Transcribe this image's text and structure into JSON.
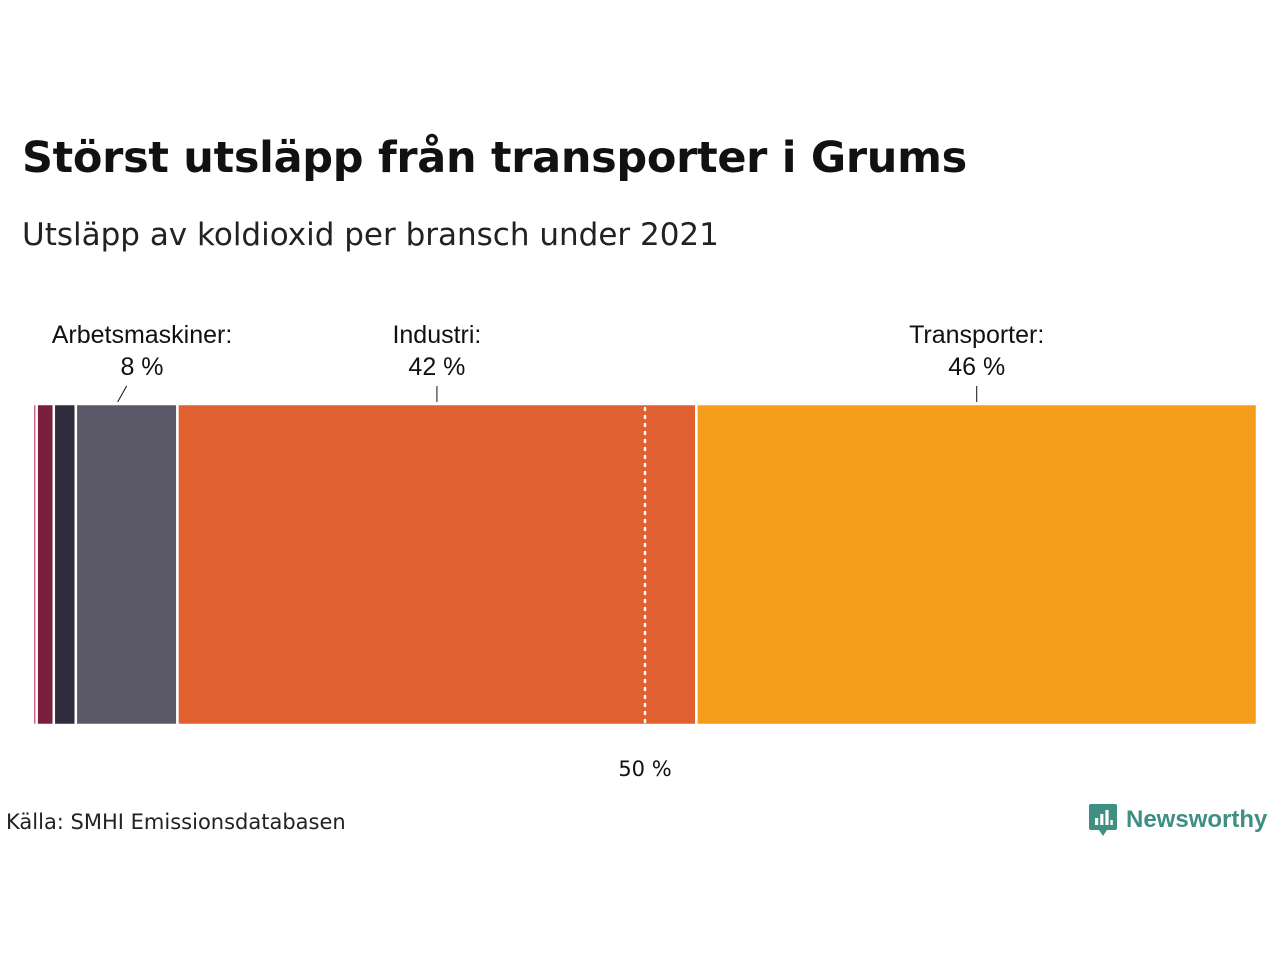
{
  "header": {
    "title": "Störst utsläpp från transporter i Grums",
    "subtitle": "Utsläpp av koldioxid per bransch under 2021"
  },
  "footer": {
    "source": "Källa: SMHI Emissionsdatabasen",
    "brand": "Newsworthy",
    "brand_icon": "newsworthy-logo-icon",
    "brand_color": "#3f8f83"
  },
  "chart_data": {
    "type": "bar",
    "orientation": "horizontal-stacked-100",
    "segments": [
      {
        "value": 0.3,
        "color": "#b43a52",
        "label": "",
        "value_label": ""
      },
      {
        "value": 1.4,
        "color": "#7a1f3d",
        "label": "",
        "value_label": ""
      },
      {
        "value": 1.8,
        "color": "#2f2b3c",
        "label": "",
        "value_label": ""
      },
      {
        "value": 8.3,
        "color": "#5a5867",
        "label": "Arbetsmaskiner:",
        "value_label": "8 %"
      },
      {
        "value": 42.4,
        "color": "#e0602f",
        "label": "Industri:",
        "value_label": "42 %"
      },
      {
        "value": 45.8,
        "color": "#f59c1a",
        "label": "Transporter:",
        "value_label": "46 %"
      }
    ],
    "reference_line": {
      "value": 50,
      "label": "50 %",
      "style": "dotted"
    },
    "xlim": [
      0,
      100
    ],
    "grid": false,
    "legend": "none"
  }
}
